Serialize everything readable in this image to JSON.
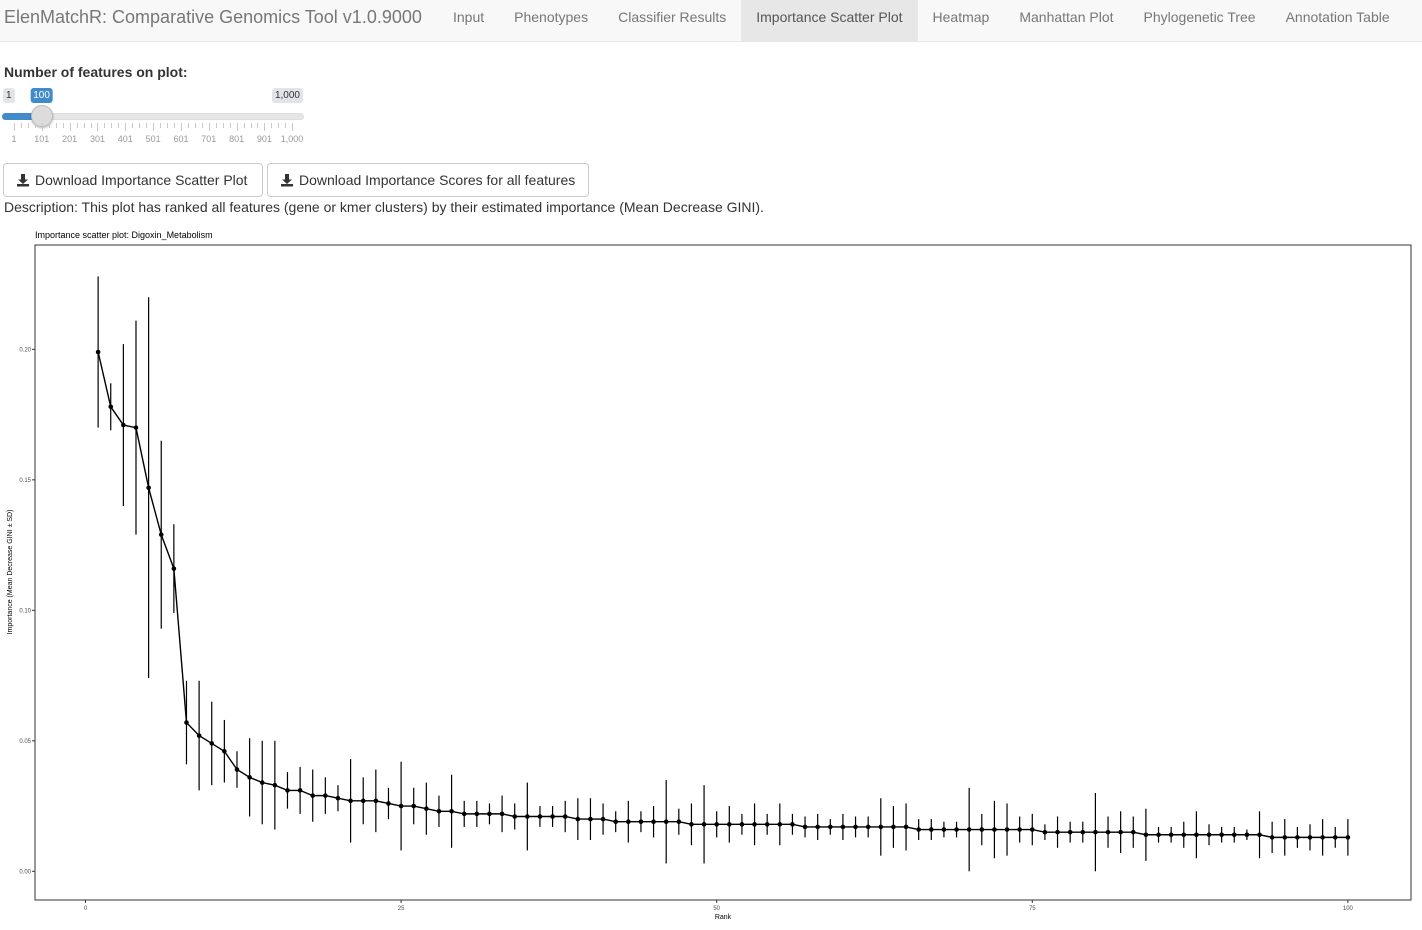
{
  "app": {
    "title": "ElenMatchR: Comparative Genomics Tool v1.0.9000"
  },
  "nav": {
    "tabs": [
      {
        "label": "Input",
        "active": false
      },
      {
        "label": "Phenotypes",
        "active": false
      },
      {
        "label": "Classifier Results",
        "active": false
      },
      {
        "label": "Importance Scatter Plot",
        "active": true
      },
      {
        "label": "Heatmap",
        "active": false
      },
      {
        "label": "Manhattan Plot",
        "active": false
      },
      {
        "label": "Phylogenetic Tree",
        "active": false
      },
      {
        "label": "Annotation Table",
        "active": false
      }
    ]
  },
  "slider": {
    "label": "Number of features on plot:",
    "min_label": "1",
    "max_label": "1,000",
    "value_label": "100",
    "min": 1,
    "max": 1000,
    "value": 100,
    "tick_labels": [
      "1",
      "101",
      "201",
      "301",
      "401",
      "501",
      "601",
      "701",
      "801",
      "901",
      "1,000"
    ],
    "accent_color": "#428bca"
  },
  "buttons": {
    "download_plot": "Download Importance Scatter Plot",
    "download_scores": "Download Importance Scores for all features",
    "icon": "download-icon"
  },
  "description": "Description: This plot has ranked all features (gene or kmer clusters) by their estimated importance (Mean Decrease GINI).",
  "chart_data": {
    "type": "scatter",
    "title": "Importance scatter plot: Digoxin_Metabolism",
    "xlabel": "Rank",
    "ylabel": "Importance (Mean Decrease GINI ± SD)",
    "xlim": [
      -4,
      105
    ],
    "ylim": [
      -0.011,
      0.24
    ],
    "x_ticks": [
      0,
      25,
      50,
      75,
      100
    ],
    "y_ticks": [
      0.0,
      0.05,
      0.1,
      0.15,
      0.2
    ],
    "x_tick_labels": [
      "0",
      "25",
      "50",
      "75",
      "100"
    ],
    "y_tick_labels": [
      "0.00",
      "0.05",
      "0.10",
      "0.15",
      "0.20"
    ],
    "grid": false,
    "connected": true,
    "series": [
      {
        "x": [
          1,
          2,
          3,
          4,
          5,
          6,
          7,
          8,
          9,
          10,
          11,
          12,
          13,
          14,
          15,
          16,
          17,
          18,
          19,
          20,
          21,
          22,
          23,
          24,
          25,
          26,
          27,
          28,
          29,
          30,
          31,
          32,
          33,
          34,
          35,
          36,
          37,
          38,
          39,
          40,
          41,
          42,
          43,
          44,
          45,
          46,
          47,
          48,
          49,
          50,
          51,
          52,
          53,
          54,
          55,
          56,
          57,
          58,
          59,
          60,
          61,
          62,
          63,
          64,
          65,
          66,
          67,
          68,
          69,
          70,
          71,
          72,
          73,
          74,
          75,
          76,
          77,
          78,
          79,
          80,
          81,
          82,
          83,
          84,
          85,
          86,
          87,
          88,
          89,
          90,
          91,
          92,
          93,
          94,
          95,
          96,
          97,
          98,
          99,
          100
        ],
        "y": [
          0.199,
          0.178,
          0.171,
          0.17,
          0.147,
          0.129,
          0.116,
          0.057,
          0.052,
          0.049,
          0.046,
          0.039,
          0.036,
          0.034,
          0.033,
          0.031,
          0.031,
          0.029,
          0.029,
          0.028,
          0.027,
          0.027,
          0.027,
          0.026,
          0.025,
          0.025,
          0.024,
          0.023,
          0.023,
          0.022,
          0.022,
          0.022,
          0.022,
          0.021,
          0.021,
          0.021,
          0.021,
          0.021,
          0.02,
          0.02,
          0.02,
          0.019,
          0.019,
          0.019,
          0.019,
          0.019,
          0.019,
          0.018,
          0.018,
          0.018,
          0.018,
          0.018,
          0.018,
          0.018,
          0.018,
          0.018,
          0.017,
          0.017,
          0.017,
          0.017,
          0.017,
          0.017,
          0.017,
          0.017,
          0.017,
          0.016,
          0.016,
          0.016,
          0.016,
          0.016,
          0.016,
          0.016,
          0.016,
          0.016,
          0.016,
          0.015,
          0.015,
          0.015,
          0.015,
          0.015,
          0.015,
          0.015,
          0.015,
          0.014,
          0.014,
          0.014,
          0.014,
          0.014,
          0.014,
          0.014,
          0.014,
          0.014,
          0.014,
          0.013,
          0.013,
          0.013,
          0.013,
          0.013,
          0.013,
          0.013
        ],
        "sd": [
          0.029,
          0.009,
          0.031,
          0.041,
          0.073,
          0.036,
          0.017,
          0.016,
          0.021,
          0.016,
          0.012,
          0.007,
          0.015,
          0.016,
          0.017,
          0.007,
          0.009,
          0.01,
          0.007,
          0.005,
          0.016,
          0.009,
          0.012,
          0.006,
          0.017,
          0.007,
          0.01,
          0.006,
          0.014,
          0.005,
          0.005,
          0.004,
          0.007,
          0.005,
          0.013,
          0.004,
          0.004,
          0.006,
          0.008,
          0.008,
          0.006,
          0.004,
          0.008,
          0.004,
          0.006,
          0.016,
          0.005,
          0.008,
          0.015,
          0.005,
          0.007,
          0.004,
          0.008,
          0.004,
          0.008,
          0.004,
          0.004,
          0.005,
          0.003,
          0.005,
          0.004,
          0.004,
          0.011,
          0.008,
          0.009,
          0.004,
          0.004,
          0.003,
          0.003,
          0.016,
          0.006,
          0.011,
          0.01,
          0.005,
          0.006,
          0.003,
          0.006,
          0.004,
          0.004,
          0.015,
          0.006,
          0.008,
          0.006,
          0.01,
          0.003,
          0.003,
          0.005,
          0.009,
          0.004,
          0.003,
          0.003,
          0.002,
          0.009,
          0.006,
          0.007,
          0.004,
          0.005,
          0.007,
          0.004,
          0.007
        ]
      }
    ]
  }
}
